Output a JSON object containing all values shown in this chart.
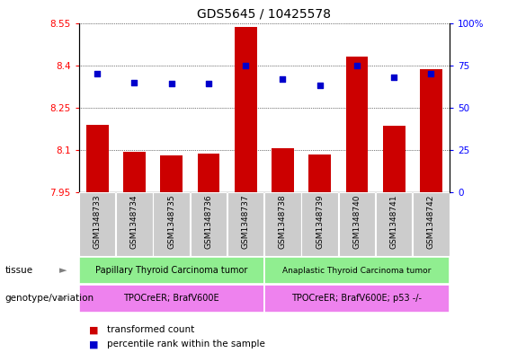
{
  "title": "GDS5645 / 10425578",
  "samples": [
    "GSM1348733",
    "GSM1348734",
    "GSM1348735",
    "GSM1348736",
    "GSM1348737",
    "GSM1348738",
    "GSM1348739",
    "GSM1348740",
    "GSM1348741",
    "GSM1348742"
  ],
  "transformed_count": [
    8.19,
    8.093,
    8.082,
    8.087,
    8.535,
    8.108,
    8.085,
    8.43,
    8.185,
    8.385
  ],
  "percentile_rank": [
    70,
    65,
    64,
    64,
    75,
    67,
    63,
    75,
    68,
    70
  ],
  "ylim_left": [
    7.95,
    8.55
  ],
  "ylim_right": [
    0,
    100
  ],
  "yticks_left": [
    7.95,
    8.1,
    8.25,
    8.4,
    8.55
  ],
  "yticks_right": [
    0,
    25,
    50,
    75,
    100
  ],
  "bar_color": "#cc0000",
  "dot_color": "#0000cc",
  "tissue_labels": [
    "Papillary Thyroid Carcinoma tumor",
    "Anaplastic Thyroid Carcinoma tumor"
  ],
  "genotype_labels": [
    "TPOCreER; BrafV600E",
    "TPOCreER; BrafV600E; p53 -/-"
  ],
  "tissue_split": 5,
  "xlabel_tissue": "tissue",
  "xlabel_genotype": "genotype/variation",
  "legend_red": "transformed count",
  "legend_blue": "percentile rank within the sample",
  "bg_color": "#ffffff",
  "xticklabel_bg": "#cccccc",
  "title_fontsize": 10,
  "axis_fontsize": 7.5,
  "tick_label_fontsize": 6.5
}
